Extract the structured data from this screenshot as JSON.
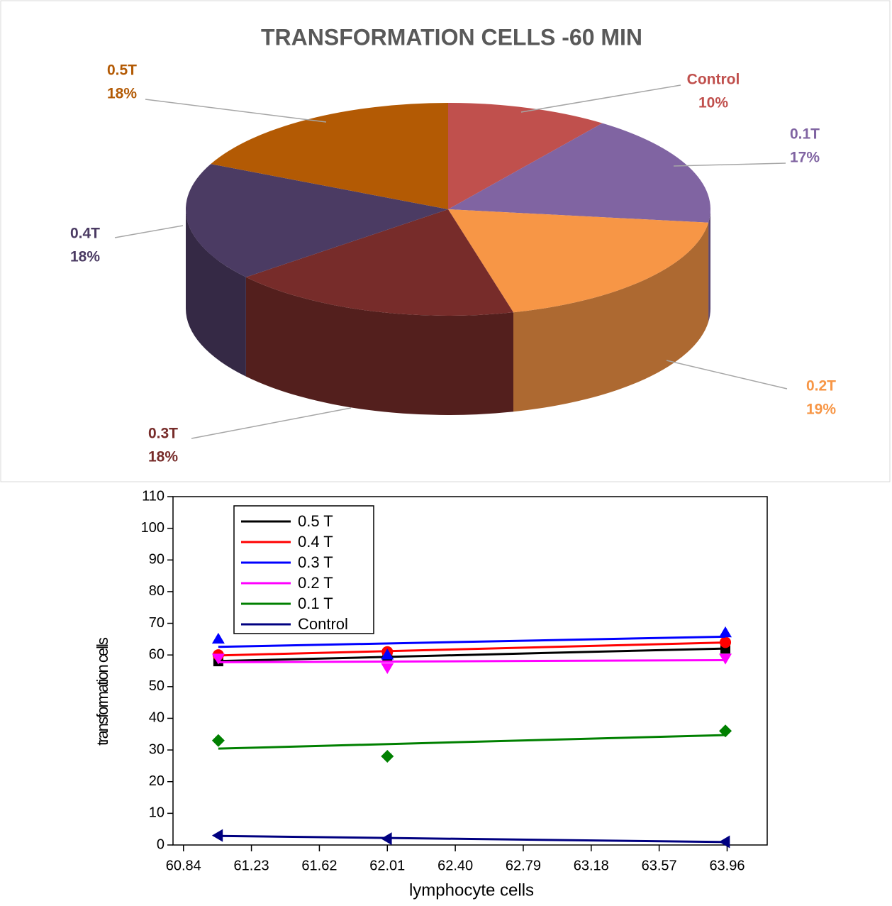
{
  "chart_data": [
    {
      "type": "pie",
      "title": "TRANSFORMATION CELLS -60 MIN",
      "categories": [
        "Control",
        "0.1T",
        "0.2T",
        "0.3T",
        "0.4T",
        "0.5T"
      ],
      "values": [
        10,
        17,
        19,
        18,
        18,
        18
      ],
      "value_labels": [
        "10%",
        "17%",
        "19%",
        "18%",
        "18%",
        "18%"
      ],
      "colors": [
        "#c0504d",
        "#8064a2",
        "#f79646",
        "#772c2a",
        "#4b3b63",
        "#b35a04"
      ]
    },
    {
      "type": "scatter",
      "xlabel": "lymphocyte cells",
      "ylabel": "transformation cells",
      "xlim": [
        60.78,
        64.19
      ],
      "ylim": [
        0,
        110
      ],
      "xticks": [
        60.84,
        61.23,
        61.62,
        62.01,
        {
          "value": 62.4,
          "label": "62.40"
        },
        62.79,
        63.18,
        63.57,
        63.96
      ],
      "yticks": [
        0,
        10,
        20,
        30,
        40,
        50,
        60,
        70,
        80,
        90,
        100,
        110
      ],
      "legend": "upper left",
      "series": [
        {
          "name": "0.5 T",
          "color": "#000000",
          "marker": "square",
          "x": [
            61.04,
            62.01,
            63.95
          ],
          "values": [
            58,
            59.5,
            62
          ]
        },
        {
          "name": "0.4 T",
          "color": "#ff0000",
          "marker": "circle",
          "x": [
            61.04,
            62.01,
            63.95
          ],
          "values": [
            60,
            61,
            64
          ]
        },
        {
          "name": "0.3 T",
          "color": "#0000ff",
          "marker": "triangle-up",
          "x": [
            61.04,
            62.01,
            63.95
          ],
          "values": [
            65,
            60,
            67
          ]
        },
        {
          "name": "0.2 T",
          "color": "#ff00ff",
          "marker": "triangle-down",
          "x": [
            61.04,
            62.01,
            63.95
          ],
          "values": [
            59,
            56,
            59
          ]
        },
        {
          "name": "0.1 T",
          "color": "#008000",
          "marker": "diamond",
          "x": [
            61.04,
            62.01,
            63.95
          ],
          "values": [
            33,
            28,
            36
          ]
        },
        {
          "name": "Control",
          "color": "#000080",
          "marker": "triangle-left",
          "x": [
            61.04,
            62.01,
            63.95
          ],
          "values": [
            3,
            2,
            1
          ]
        }
      ]
    }
  ]
}
